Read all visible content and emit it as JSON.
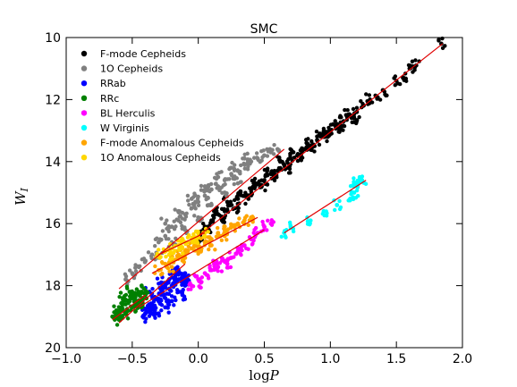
{
  "chart_data": {
    "type": "scatter",
    "title": "SMC",
    "xlabel": "log P",
    "ylabel": "W_I",
    "xlim": [
      -1.0,
      2.0
    ],
    "ylim": [
      20,
      10
    ],
    "y_inverted": true,
    "x_ticks": [
      -1.0,
      -0.5,
      0.0,
      0.5,
      1.0,
      1.5,
      2.0
    ],
    "x_tick_labels": [
      "−1.0",
      "−0.5",
      "0.0",
      "0.5",
      "1.0",
      "1.5",
      "2.0"
    ],
    "y_ticks": [
      10,
      12,
      14,
      16,
      18,
      20
    ],
    "y_tick_labels": [
      "10",
      "12",
      "14",
      "16",
      "18",
      "20"
    ],
    "grid": false,
    "legend_position": "top-left",
    "series": [
      {
        "name": "F-mode Cepheids",
        "color": "#000000",
        "fit_line": [
          [
            0.0,
            16.4
          ],
          [
            1.85,
            10.2
          ]
        ],
        "points": [
          [
            0.05,
            16.1
          ],
          [
            0.1,
            15.9
          ],
          [
            0.15,
            15.7
          ],
          [
            0.2,
            15.6
          ],
          [
            0.25,
            15.4
          ],
          [
            0.3,
            15.2
          ],
          [
            0.35,
            15.1
          ],
          [
            0.4,
            14.9
          ],
          [
            0.45,
            14.7
          ],
          [
            0.5,
            14.6
          ],
          [
            0.55,
            14.4
          ],
          [
            0.6,
            14.3
          ],
          [
            0.65,
            14.1
          ],
          [
            0.7,
            13.9
          ],
          [
            0.75,
            13.8
          ],
          [
            0.8,
            13.6
          ],
          [
            0.85,
            13.5
          ],
          [
            0.9,
            13.3
          ],
          [
            0.95,
            13.2
          ],
          [
            1.0,
            13.0
          ],
          [
            1.05,
            12.9
          ],
          [
            1.1,
            12.7
          ],
          [
            1.15,
            12.5
          ],
          [
            1.2,
            12.4
          ],
          [
            1.25,
            12.2
          ],
          [
            1.3,
            12.0
          ],
          [
            1.35,
            11.9
          ],
          [
            1.4,
            11.7
          ],
          [
            1.5,
            11.4
          ],
          [
            1.55,
            11.3
          ],
          [
            1.6,
            11.0
          ],
          [
            1.65,
            10.9
          ],
          [
            1.84,
            10.2
          ],
          [
            0.0,
            16.5
          ],
          [
            0.08,
            16.2
          ],
          [
            0.18,
            15.9
          ],
          [
            0.28,
            15.5
          ],
          [
            0.38,
            15.2
          ],
          [
            0.48,
            14.8
          ],
          [
            0.58,
            14.5
          ],
          [
            0.68,
            14.2
          ],
          [
            0.78,
            13.9
          ],
          [
            0.88,
            13.5
          ],
          [
            0.98,
            13.2
          ],
          [
            1.08,
            12.9
          ],
          [
            1.18,
            12.6
          ],
          [
            0.12,
            15.6
          ],
          [
            0.22,
            15.3
          ],
          [
            0.32,
            15.0
          ],
          [
            0.42,
            14.7
          ],
          [
            0.52,
            14.4
          ],
          [
            0.62,
            14.0
          ],
          [
            0.72,
            13.7
          ],
          [
            0.82,
            13.4
          ],
          [
            0.92,
            13.1
          ],
          [
            1.02,
            12.8
          ],
          [
            1.12,
            12.5
          ]
        ]
      },
      {
        "name": "1O Cepheids",
        "color": "#808080",
        "fit_line": [
          [
            -0.6,
            18.1
          ],
          [
            0.65,
            13.6
          ]
        ],
        "points": [
          [
            -0.55,
            17.8
          ],
          [
            -0.5,
            17.6
          ],
          [
            -0.45,
            17.4
          ],
          [
            -0.4,
            17.2
          ],
          [
            -0.35,
            17.0
          ],
          [
            -0.3,
            16.6
          ],
          [
            -0.25,
            16.4
          ],
          [
            -0.2,
            16.1
          ],
          [
            -0.15,
            15.9
          ],
          [
            -0.1,
            15.7
          ],
          [
            -0.05,
            15.5
          ],
          [
            0.0,
            15.3
          ],
          [
            0.05,
            15.1
          ],
          [
            0.1,
            14.9
          ],
          [
            0.15,
            14.8
          ],
          [
            0.2,
            14.6
          ],
          [
            0.25,
            14.4
          ],
          [
            0.3,
            14.3
          ],
          [
            0.35,
            14.1
          ],
          [
            0.4,
            14.0
          ],
          [
            0.45,
            13.9
          ],
          [
            0.5,
            13.8
          ],
          [
            0.55,
            13.7
          ],
          [
            0.6,
            13.6
          ],
          [
            -0.3,
            17.1
          ],
          [
            -0.2,
            16.6
          ],
          [
            -0.1,
            16.2
          ],
          [
            0.0,
            15.8
          ],
          [
            0.1,
            15.4
          ],
          [
            0.2,
            15.0
          ],
          [
            0.3,
            14.7
          ],
          [
            -0.25,
            16.0
          ],
          [
            -0.15,
            15.6
          ],
          [
            -0.05,
            15.2
          ],
          [
            0.05,
            14.8
          ],
          [
            0.15,
            14.5
          ],
          [
            0.25,
            14.2
          ],
          [
            0.35,
            13.9
          ]
        ]
      },
      {
        "name": "RRab",
        "color": "#0000ff",
        "fit_line": [
          [
            -0.6,
            19.2
          ],
          [
            -0.1,
            17.3
          ]
        ],
        "points": [
          [
            -0.4,
            18.9
          ],
          [
            -0.38,
            18.7
          ],
          [
            -0.35,
            18.6
          ],
          [
            -0.33,
            18.8
          ],
          [
            -0.3,
            18.5
          ],
          [
            -0.28,
            18.3
          ],
          [
            -0.25,
            18.4
          ],
          [
            -0.22,
            18.1
          ],
          [
            -0.2,
            18.0
          ],
          [
            -0.18,
            17.9
          ],
          [
            -0.15,
            17.8
          ],
          [
            -0.12,
            17.7
          ],
          [
            -0.1,
            17.6
          ],
          [
            -0.35,
            18.9
          ],
          [
            -0.3,
            18.9
          ],
          [
            -0.25,
            18.7
          ],
          [
            -0.2,
            18.5
          ],
          [
            -0.15,
            18.2
          ],
          [
            -0.32,
            18.4
          ],
          [
            -0.27,
            18.1
          ],
          [
            -0.22,
            17.8
          ],
          [
            -0.17,
            17.6
          ],
          [
            -0.1,
            18.0
          ],
          [
            -0.12,
            18.3
          ],
          [
            -0.08,
            17.8
          ],
          [
            -0.42,
            19.0
          ],
          [
            -0.37,
            18.2
          ],
          [
            -0.28,
            17.9
          ],
          [
            -0.2,
            17.6
          ],
          [
            -0.15,
            17.5
          ]
        ]
      },
      {
        "name": "RRc",
        "color": "#008000",
        "fit_line": [
          [
            -0.65,
            19.1
          ],
          [
            -0.4,
            18.3
          ]
        ],
        "points": [
          [
            -0.65,
            19.0
          ],
          [
            -0.6,
            18.9
          ],
          [
            -0.58,
            18.7
          ],
          [
            -0.55,
            18.6
          ],
          [
            -0.52,
            18.5
          ],
          [
            -0.5,
            18.4
          ],
          [
            -0.48,
            18.3
          ],
          [
            -0.45,
            18.2
          ],
          [
            -0.42,
            18.4
          ],
          [
            -0.4,
            18.3
          ],
          [
            -0.6,
            19.1
          ],
          [
            -0.55,
            18.9
          ],
          [
            -0.5,
            18.7
          ],
          [
            -0.45,
            18.5
          ],
          [
            -0.62,
            18.8
          ],
          [
            -0.57,
            18.4
          ],
          [
            -0.52,
            18.2
          ],
          [
            -0.47,
            18.6
          ],
          [
            -0.43,
            18.7
          ],
          [
            -0.41,
            18.1
          ]
        ]
      },
      {
        "name": "BL Herculis",
        "color": "#ff00ff",
        "fit_line": [
          [
            -0.45,
            18.7
          ],
          [
            0.5,
            16.2
          ]
        ],
        "points": [
          [
            -0.05,
            18.0
          ],
          [
            0.0,
            17.8
          ],
          [
            0.05,
            17.6
          ],
          [
            0.1,
            17.5
          ],
          [
            0.15,
            17.4
          ],
          [
            0.2,
            17.2
          ],
          [
            0.25,
            17.1
          ],
          [
            0.3,
            16.9
          ],
          [
            0.35,
            16.7
          ],
          [
            0.4,
            16.5
          ],
          [
            0.45,
            16.3
          ],
          [
            0.5,
            16.1
          ],
          [
            0.55,
            16.0
          ],
          [
            0.02,
            17.9
          ],
          [
            0.12,
            17.3
          ],
          [
            0.22,
            17.3
          ],
          [
            0.32,
            16.8
          ]
        ]
      },
      {
        "name": "W Virginis",
        "color": "#00ffff",
        "fit_line": [
          [
            0.65,
            16.3
          ],
          [
            1.27,
            14.6
          ]
        ],
        "points": [
          [
            0.65,
            16.3
          ],
          [
            0.7,
            16.1
          ],
          [
            0.85,
            15.9
          ],
          [
            0.95,
            15.6
          ],
          [
            1.05,
            15.4
          ],
          [
            1.15,
            15.2
          ],
          [
            1.18,
            14.8
          ],
          [
            1.2,
            14.7
          ],
          [
            1.22,
            14.6
          ],
          [
            1.24,
            14.6
          ],
          [
            1.18,
            15.0
          ]
        ]
      },
      {
        "name": "F-mode Anomalous Cepheids",
        "color": "#ffa500",
        "fit_line": [
          [
            -0.35,
            17.6
          ],
          [
            0.45,
            15.8
          ]
        ],
        "points": [
          [
            -0.3,
            17.5
          ],
          [
            -0.25,
            17.3
          ],
          [
            -0.2,
            17.2
          ],
          [
            -0.15,
            17.0
          ],
          [
            -0.1,
            16.9
          ],
          [
            -0.05,
            16.8
          ],
          [
            0.0,
            16.7
          ],
          [
            0.05,
            16.6
          ],
          [
            0.1,
            16.5
          ],
          [
            0.15,
            16.3
          ],
          [
            0.2,
            16.2
          ],
          [
            0.25,
            16.1
          ],
          [
            0.3,
            16.0
          ],
          [
            0.35,
            15.9
          ],
          [
            0.4,
            15.8
          ],
          [
            -0.2,
            17.4
          ],
          [
            -0.1,
            17.1
          ],
          [
            0.0,
            16.9
          ],
          [
            0.1,
            16.7
          ],
          [
            0.2,
            16.4
          ]
        ]
      },
      {
        "name": "1O Anomalous Cepheids",
        "color": "#ffd700",
        "fit_line": [
          [
            -0.3,
            17.0
          ],
          [
            0.05,
            16.3
          ]
        ],
        "points": [
          [
            -0.3,
            17.0
          ],
          [
            -0.25,
            16.9
          ],
          [
            -0.2,
            16.8
          ],
          [
            -0.15,
            16.7
          ],
          [
            -0.1,
            16.6
          ],
          [
            -0.05,
            16.5
          ],
          [
            0.0,
            16.4
          ],
          [
            0.05,
            16.3
          ],
          [
            -0.22,
            17.0
          ],
          [
            -0.12,
            16.8
          ],
          [
            -0.02,
            16.6
          ]
        ]
      }
    ]
  }
}
